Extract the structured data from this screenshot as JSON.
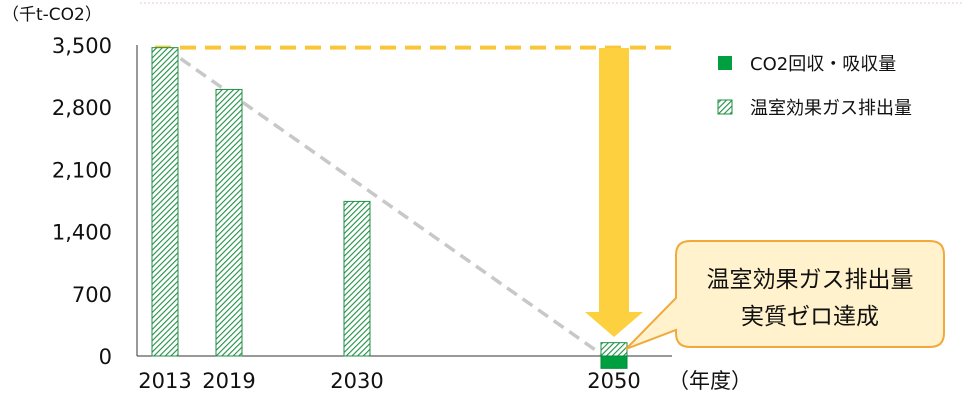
{
  "chart_data": {
    "type": "bar",
    "unit_label": "（千t-CO2）",
    "x_unit_label": "（年度）",
    "categories": [
      "2013",
      "2019",
      "2030",
      "2050"
    ],
    "ylim": [
      0,
      3500
    ],
    "yticks": [
      "3,500",
      "2,800",
      "2,100",
      "1,400",
      "700",
      "0"
    ],
    "ytick_values": [
      3500,
      2800,
      2100,
      1400,
      700,
      0
    ],
    "series": [
      {
        "name": "CO2回収・吸収量",
        "values": [
          0,
          0,
          0,
          -150
        ],
        "color": "#00a040"
      },
      {
        "name": "温室効果ガス排出量",
        "values": [
          3470,
          3000,
          1740,
          150
        ],
        "color": "#3cb371"
      }
    ],
    "reference_line_value": 3470,
    "reference_line_color": "#f9c63a",
    "trend_line": {
      "from": "2013",
      "to": "2050",
      "color": "#c8c8c8"
    },
    "arrow_color": "#fdd040",
    "callout": {
      "lines": [
        "温室効果ガス排出量",
        "実質ゼロ達成"
      ],
      "fill": "#fff2cc",
      "stroke": "#f2a93b"
    },
    "legend_position": "top-right"
  }
}
